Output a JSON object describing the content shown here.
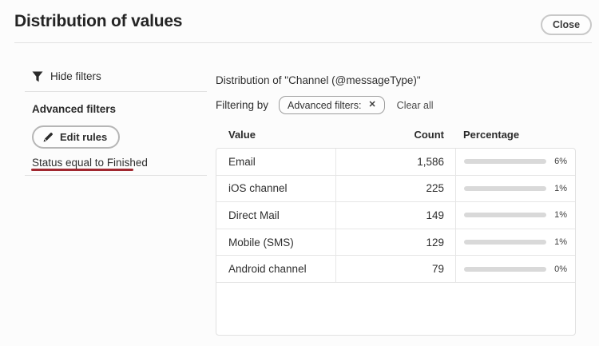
{
  "header": {
    "title": "Distribution of values",
    "close_label": "Close"
  },
  "sidebar": {
    "hide_filters_label": "Hide filters",
    "advanced_filters_heading": "Advanced filters",
    "edit_rules_label": "Edit rules",
    "filter_rule": "Status equal to Finished"
  },
  "main": {
    "distribution_title": "Distribution of \"Channel (@messageType)\"",
    "filtering_by_label": "Filtering by",
    "filter_chip_label": "Advanced filters:",
    "chip_close_glyph": "✕",
    "clear_all_label": "Clear all"
  },
  "table": {
    "columns": {
      "value": "Value",
      "count": "Count",
      "percentage": "Percentage"
    },
    "rows": [
      {
        "value": "Email",
        "count": "1,586",
        "percent": 6,
        "percent_label": "6%"
      },
      {
        "value": "iOS channel",
        "count": "225",
        "percent": 1,
        "percent_label": "1%"
      },
      {
        "value": "Direct Mail",
        "count": "149",
        "percent": 1,
        "percent_label": "1%"
      },
      {
        "value": "Mobile (SMS)",
        "count": "129",
        "percent": 1,
        "percent_label": "1%"
      },
      {
        "value": "Android channel",
        "count": "79",
        "percent": 0,
        "percent_label": "0%"
      }
    ]
  },
  "colors": {
    "bar_fill": "#1e9a6d",
    "bar_track": "#d9d9d9",
    "rule_underline": "#a12830"
  }
}
